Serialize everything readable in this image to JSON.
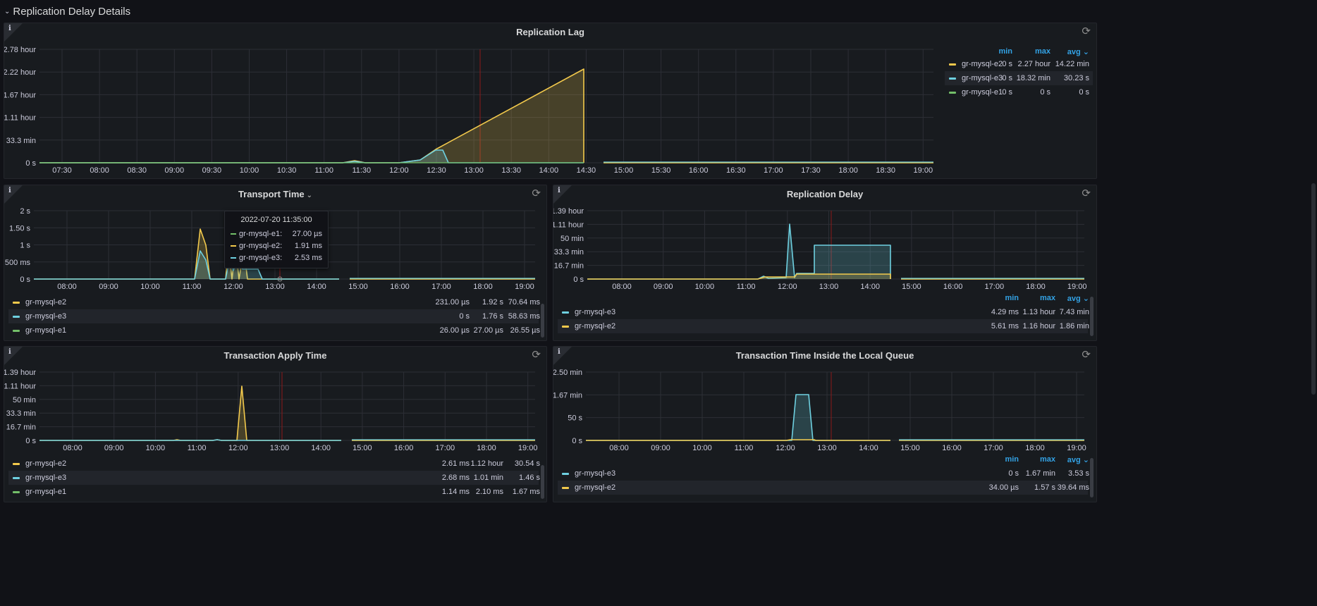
{
  "row": {
    "title": "Replication Delay Details"
  },
  "colors": {
    "e1": "#73bf69",
    "e2": "#f2c94c",
    "e3": "#6ed0e0",
    "now_line": "#8b1a1a",
    "grid": "#2c2f36",
    "header_accent": "#33a2e5"
  },
  "icons": {
    "info": "info-icon",
    "refresh": "refresh-icon",
    "collapse": "chevron-down-icon"
  },
  "panels": {
    "lag": {
      "title": "Replication Lag",
      "y_ticks": [
        "2.78 hour",
        "2.22 hour",
        "1.67 hour",
        "1.11 hour",
        "33.3 min",
        "0 s"
      ],
      "x_ticks": [
        "07:30",
        "08:00",
        "08:30",
        "09:00",
        "09:30",
        "10:00",
        "10:30",
        "11:00",
        "11:30",
        "12:00",
        "12:30",
        "13:00",
        "13:30",
        "14:00",
        "14:30",
        "15:00",
        "15:30",
        "16:00",
        "16:30",
        "17:00",
        "17:30",
        "18:00",
        "18:30",
        "19:00"
      ],
      "legend_headers": [
        "min",
        "max",
        "avg ⌄"
      ],
      "legend": [
        {
          "name": "gr-mysql-e2",
          "color_key": "e2",
          "values": [
            "0 s",
            "2.27 hour",
            "14.22 min"
          ]
        },
        {
          "name": "gr-mysql-e3",
          "color_key": "e3",
          "values": [
            "0 s",
            "18.32 min",
            "30.23 s"
          ]
        },
        {
          "name": "gr-mysql-e1",
          "color_key": "e1",
          "values": [
            "0 s",
            "0 s",
            "0 s"
          ]
        }
      ]
    },
    "transport": {
      "title": "Transport Time",
      "title_caret": "⌄",
      "y_ticks": [
        "2 s",
        "1.50 s",
        "1 s",
        "500 ms",
        "0 s"
      ],
      "x_ticks": [
        "08:00",
        "09:00",
        "10:00",
        "11:00",
        "12:00",
        "13:00",
        "14:00",
        "15:00",
        "16:00",
        "17:00",
        "18:00",
        "19:00"
      ],
      "legend": [
        {
          "name": "gr-mysql-e2",
          "color_key": "e2",
          "values": [
            "231.00 µs",
            "1.92 s",
            "70.64 ms"
          ]
        },
        {
          "name": "gr-mysql-e3",
          "color_key": "e3",
          "values": [
            "0 s",
            "1.76 s",
            "58.63 ms"
          ]
        },
        {
          "name": "gr-mysql-e1",
          "color_key": "e1",
          "values": [
            "26.00 µs",
            "27.00 µs",
            "26.55 µs"
          ]
        }
      ],
      "tooltip": {
        "time": "2022-07-20 11:35:00",
        "rows": [
          {
            "name": "gr-mysql-e1:",
            "color_key": "e1",
            "value": "27.00 µs"
          },
          {
            "name": "gr-mysql-e2:",
            "color_key": "e2",
            "value": "1.91 ms"
          },
          {
            "name": "gr-mysql-e3:",
            "color_key": "e3",
            "value": "2.53 ms"
          }
        ]
      }
    },
    "delay": {
      "title": "Replication Delay",
      "y_ticks": [
        "1.39 hour",
        "1.11 hour",
        "50 min",
        "33.3 min",
        "16.7 min",
        "0 s"
      ],
      "x_ticks": [
        "08:00",
        "09:00",
        "10:00",
        "11:00",
        "12:00",
        "13:00",
        "14:00",
        "15:00",
        "16:00",
        "17:00",
        "18:00",
        "19:00"
      ],
      "legend_headers": [
        "min",
        "max",
        "avg ⌄"
      ],
      "legend": [
        {
          "name": "gr-mysql-e3",
          "color_key": "e3",
          "values": [
            "4.29 ms",
            "1.13 hour",
            "7.43 min"
          ]
        },
        {
          "name": "gr-mysql-e2",
          "color_key": "e2",
          "values": [
            "5.61 ms",
            "1.16 hour",
            "1.86 min"
          ]
        }
      ]
    },
    "apply": {
      "title": "Transaction Apply Time",
      "y_ticks": [
        "1.39 hour",
        "1.11 hour",
        "50 min",
        "33.3 min",
        "16.7 min",
        "0 s"
      ],
      "x_ticks": [
        "08:00",
        "09:00",
        "10:00",
        "11:00",
        "12:00",
        "13:00",
        "14:00",
        "15:00",
        "16:00",
        "17:00",
        "18:00",
        "19:00"
      ],
      "legend": [
        {
          "name": "gr-mysql-e2",
          "color_key": "e2",
          "values": [
            "2.61 ms",
            "1.12 hour",
            "30.54 s"
          ]
        },
        {
          "name": "gr-mysql-e3",
          "color_key": "e3",
          "values": [
            "2.68 ms",
            "1.01 min",
            "1.46 s"
          ]
        },
        {
          "name": "gr-mysql-e1",
          "color_key": "e1",
          "values": [
            "1.14 ms",
            "2.10 ms",
            "1.67 ms"
          ]
        }
      ]
    },
    "queue": {
      "title": "Transaction Time Inside the Local Queue",
      "y_ticks": [
        "2.50 min",
        "1.67 min",
        "50 s",
        "0 s"
      ],
      "x_ticks": [
        "08:00",
        "09:00",
        "10:00",
        "11:00",
        "12:00",
        "13:00",
        "14:00",
        "15:00",
        "16:00",
        "17:00",
        "18:00",
        "19:00"
      ],
      "legend_headers": [
        "min",
        "max",
        "avg ⌄"
      ],
      "legend": [
        {
          "name": "gr-mysql-e3",
          "color_key": "e3",
          "values": [
            "0 s",
            "1.67 min",
            "3.53 s"
          ]
        },
        {
          "name": "gr-mysql-e2",
          "color_key": "e2",
          "values": [
            "34.00 µs",
            "1.57 s",
            "39.64 ms"
          ]
        }
      ]
    }
  }
}
